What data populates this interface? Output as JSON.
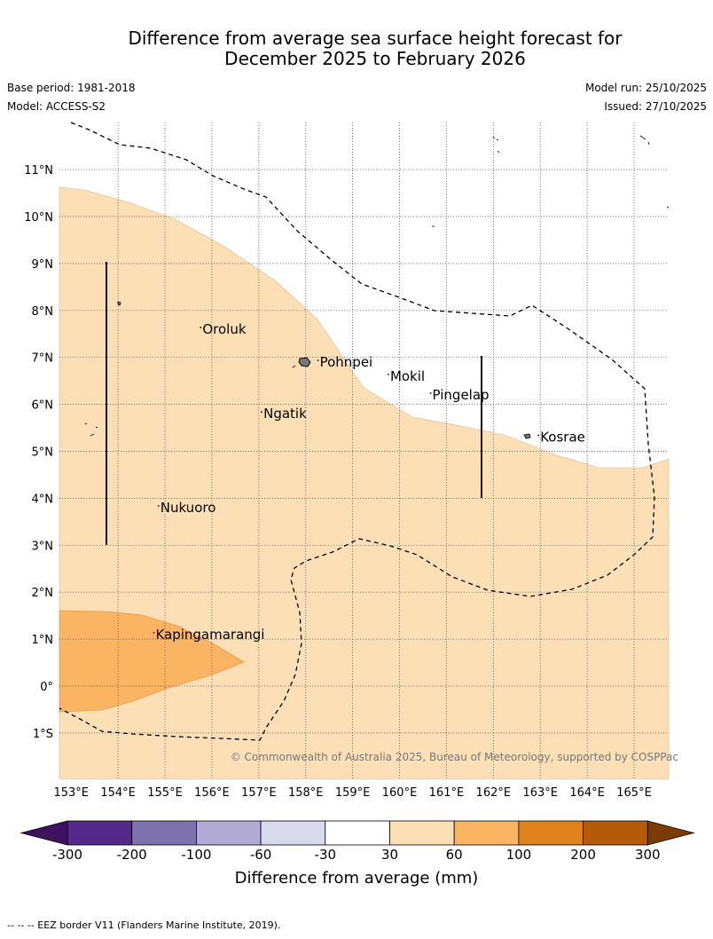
{
  "title": {
    "line1": "Difference from average sea surface height forecast for",
    "line2": "December 2025 to February 2026"
  },
  "meta": {
    "base_period": "Base period: 1981-2018",
    "model": "Model: ACCESS-S2",
    "model_run": "Model run: 25/10/2025",
    "issued": "Issued: 27/10/2025"
  },
  "map": {
    "lat_labels": [
      "11°N",
      "10°N",
      "9°N",
      "8°N",
      "7°N",
      "6°N",
      "5°N",
      "4°N",
      "3°N",
      "2°N",
      "1°N",
      "0°",
      "1°S"
    ],
    "lon_labels": [
      "153°E",
      "154°E",
      "155°E",
      "156°E",
      "157°E",
      "158°E",
      "159°E",
      "160°E",
      "161°E",
      "162°E",
      "163°E",
      "164°E",
      "165°E"
    ],
    "places": [
      {
        "name": "Oroluk",
        "lon": 155.8,
        "lat": 7.6
      },
      {
        "name": "Pohnpei",
        "lon": 158.3,
        "lat": 6.9
      },
      {
        "name": "Mokil",
        "lon": 159.8,
        "lat": 6.6
      },
      {
        "name": "Pingelap",
        "lon": 160.7,
        "lat": 6.2
      },
      {
        "name": "Ngatik",
        "lon": 157.1,
        "lat": 5.8
      },
      {
        "name": "Kosrae",
        "lon": 163.0,
        "lat": 5.3
      },
      {
        "name": "Nukuoro",
        "lon": 154.9,
        "lat": 3.8
      },
      {
        "name": "Kapingamarangi",
        "lon": 154.8,
        "lat": 1.1
      }
    ],
    "copyright": "© Commonwealth of Australia 2025, Bureau of Meteorology, supported by COSPPac"
  },
  "colorbar": {
    "labels": [
      "-300",
      "-200",
      "-100",
      "-60",
      "-30",
      "30",
      "60",
      "100",
      "200",
      "300"
    ],
    "colors": [
      "#3d1260",
      "#54288a",
      "#7d72ae",
      "#b0aad4",
      "#d9d9ee",
      "#ffffff",
      "#fddfb6",
      "#fbb462",
      "#e0821b",
      "#b55a08",
      "#7d3b04"
    ],
    "title": "Difference from average (mm)"
  },
  "footnote": "--  --  -- EEZ border V11 (Flanders Marine Institute, 2019)."
}
